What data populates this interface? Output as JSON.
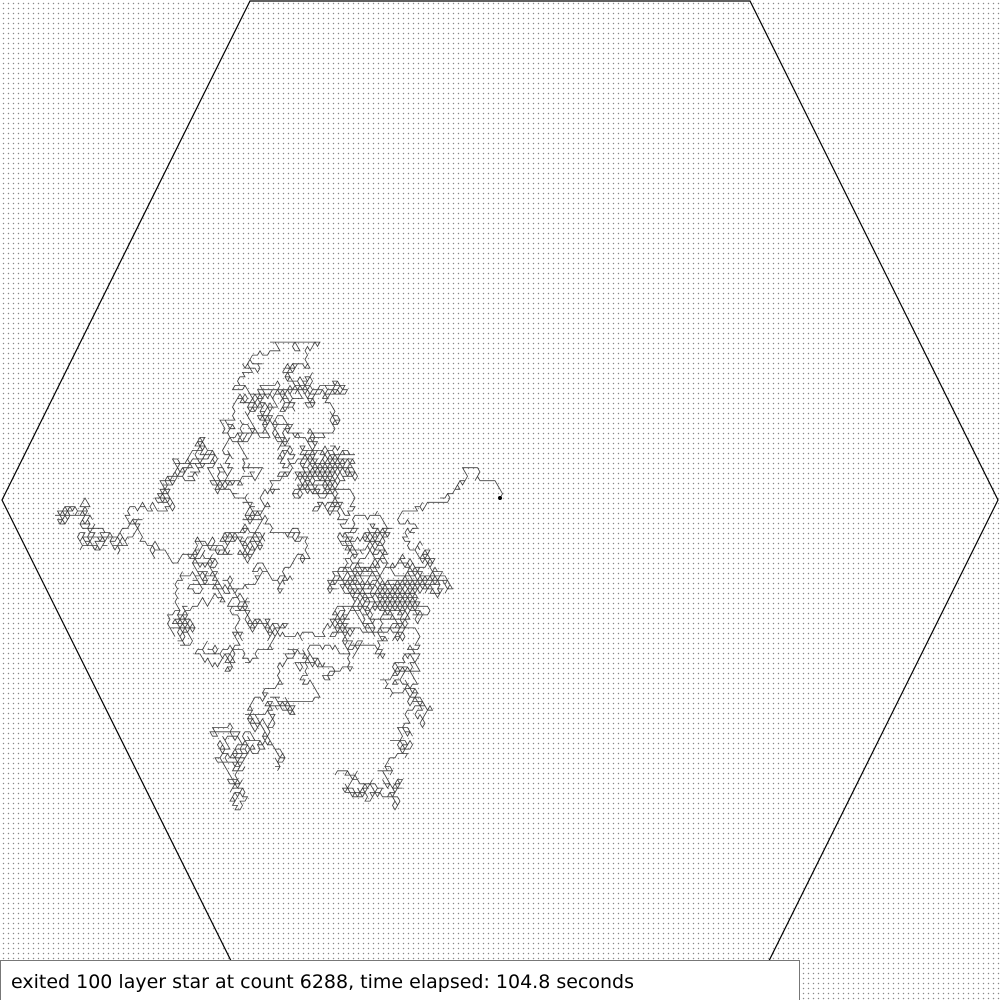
{
  "status": {
    "message": "exited 100 layer star at count 6288, time elapsed: 104.8 seconds"
  },
  "simulation": {
    "layers": 100,
    "count": 6288,
    "time_elapsed_seconds": 104.8
  },
  "colors": {
    "background": "#ffffff",
    "lattice_dot": "#8a8a8a",
    "walk_line": "#000000",
    "boundary": "#000000"
  }
}
